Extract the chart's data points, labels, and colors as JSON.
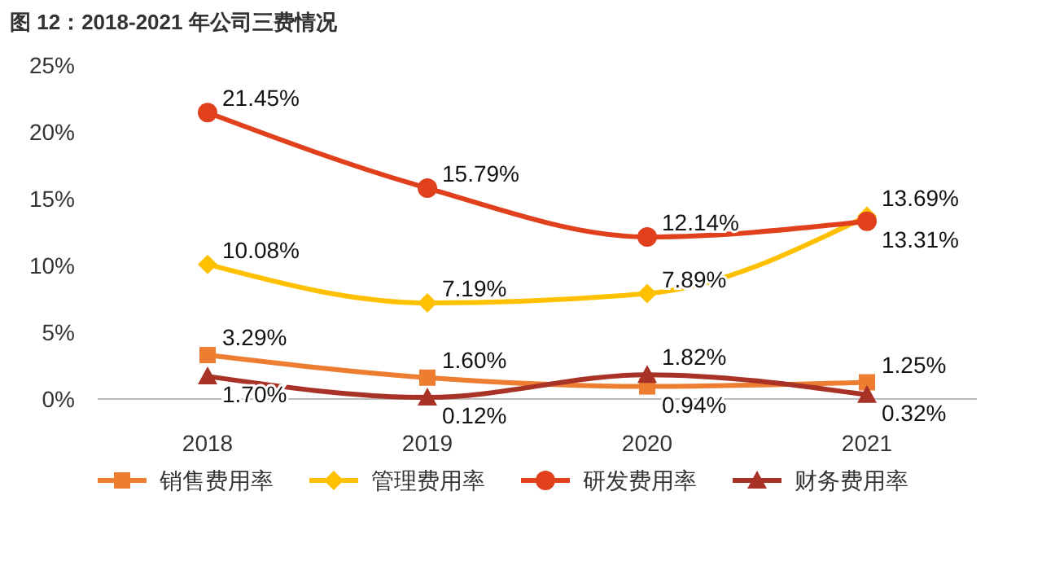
{
  "chart_data": {
    "type": "line",
    "title": "图 12：2018-2021 年公司三费情况",
    "categories": [
      "2018",
      "2019",
      "2020",
      "2021"
    ],
    "series": [
      {
        "name": "销售费用率",
        "color": "#ed7d31",
        "marker": "square",
        "values": [
          3.29,
          1.6,
          0.94,
          1.25
        ],
        "value_labels": [
          "3.29%",
          "1.60%",
          "0.94%",
          "1.25%"
        ]
      },
      {
        "name": "管理费用率",
        "color": "#ffc000",
        "marker": "diamond",
        "values": [
          10.08,
          7.19,
          7.89,
          13.69
        ],
        "value_labels": [
          "10.08%",
          "7.19%",
          "7.89%",
          "13.69%"
        ]
      },
      {
        "name": "研发费用率",
        "color": "#e0401c",
        "marker": "circle",
        "values": [
          21.45,
          15.79,
          12.14,
          13.31
        ],
        "value_labels": [
          "21.45%",
          "15.79%",
          "12.14%",
          "13.31%"
        ]
      },
      {
        "name": "财务费用率",
        "color": "#a93226",
        "marker": "triangle",
        "values": [
          1.7,
          0.12,
          1.82,
          0.32
        ],
        "value_labels": [
          "1.70%",
          "0.12%",
          "1.82%",
          "0.32%"
        ]
      }
    ],
    "ylim": [
      0,
      25
    ],
    "yticks": [
      {
        "value": 0,
        "label": "0%"
      },
      {
        "value": 5,
        "label": "5%"
      },
      {
        "value": 10,
        "label": "10%"
      },
      {
        "value": 15,
        "label": "15%"
      },
      {
        "value": 20,
        "label": "20%"
      },
      {
        "value": 25,
        "label": "25%"
      }
    ],
    "grid": false,
    "legend": "bottom"
  }
}
